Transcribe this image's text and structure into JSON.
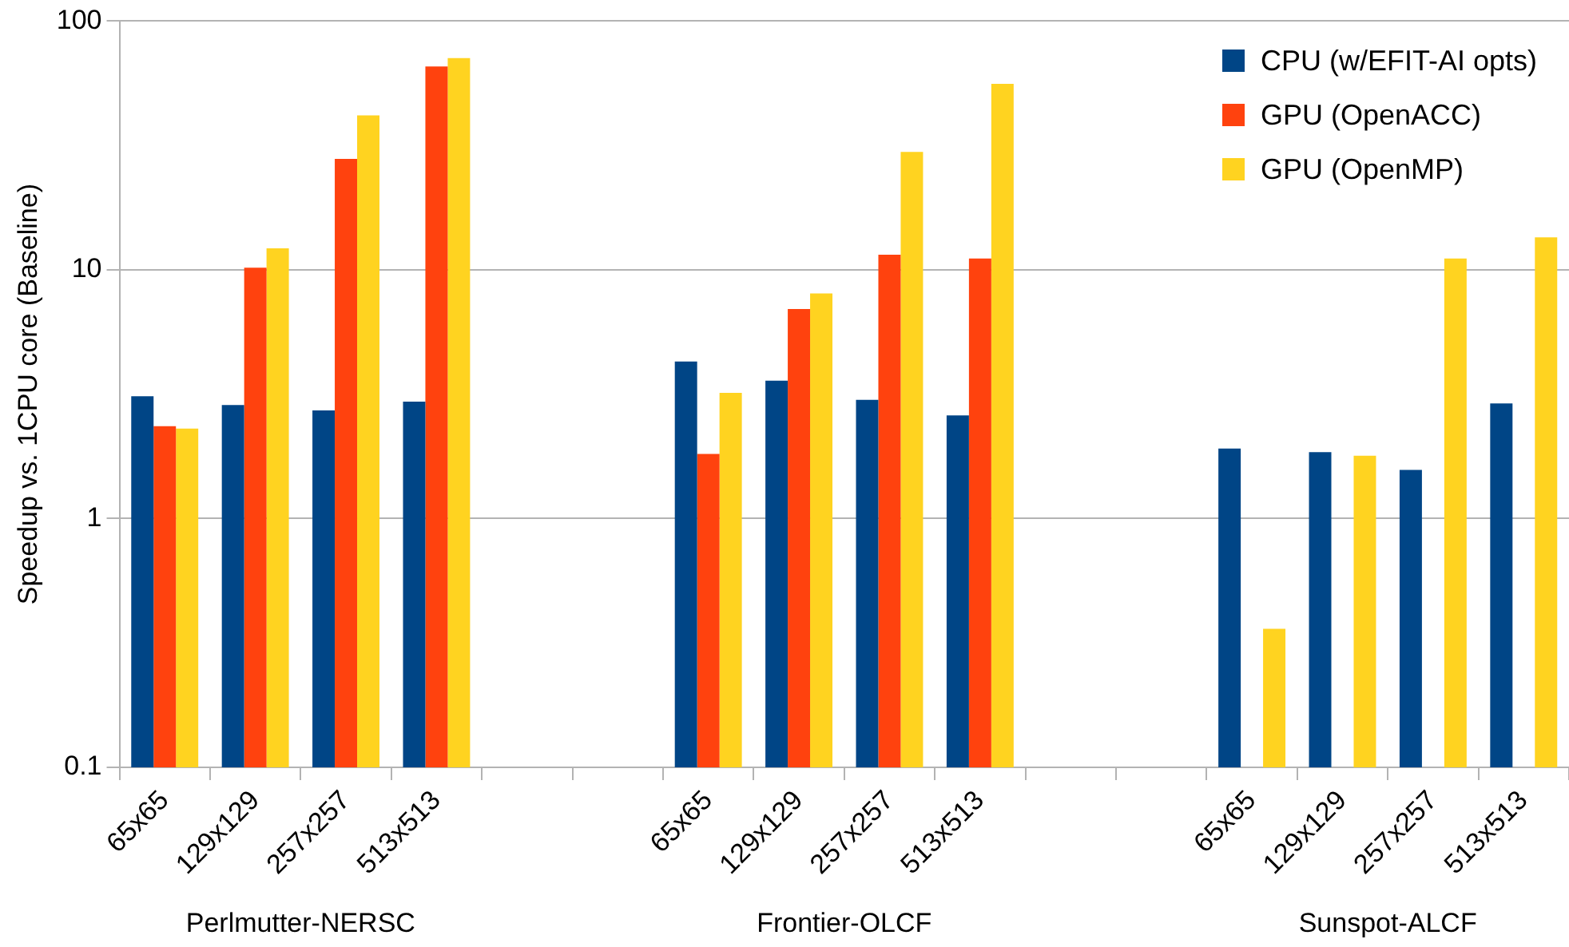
{
  "chart_data": {
    "type": "bar",
    "ylabel": "Speedup vs. 1CPU core (Baseline)",
    "categories": [
      "65x65",
      "129x129",
      "257x257",
      "513x513",
      null,
      null,
      "65x65",
      "129x129",
      "257x257",
      "513x513",
      null,
      null,
      "65x65",
      "129x129",
      "257x257",
      "513x513"
    ],
    "series": [
      {
        "name": "CPU (w/EFIT-AI opts)",
        "color": "#004586",
        "values": [
          3.1,
          2.86,
          2.72,
          2.95,
          null,
          null,
          4.28,
          3.58,
          3.0,
          2.6,
          null,
          null,
          1.91,
          1.85,
          1.57,
          2.9
        ]
      },
      {
        "name": "GPU (OpenACC)",
        "color": "#ff420e",
        "values": [
          2.35,
          10.2,
          27.9,
          65.7,
          null,
          null,
          1.82,
          6.95,
          11.5,
          11.1,
          null,
          null,
          null,
          null,
          null,
          null
        ]
      },
      {
        "name": "GPU (OpenMP)",
        "color": "#ffd320",
        "values": [
          2.3,
          12.2,
          41.8,
          71,
          null,
          null,
          3.2,
          8.04,
          29.8,
          55.9,
          null,
          null,
          0.36,
          1.79,
          11.1,
          13.5
        ]
      }
    ],
    "log": "y",
    "ylim": [
      0.1,
      100
    ],
    "yticks": [
      0.1,
      1,
      10,
      100
    ],
    "grid": "y",
    "legend": "top right",
    "annotations": [
      "Perlmutter-NERSC",
      "Frontier-OLCF",
      "Sunspot-ALCF"
    ]
  }
}
